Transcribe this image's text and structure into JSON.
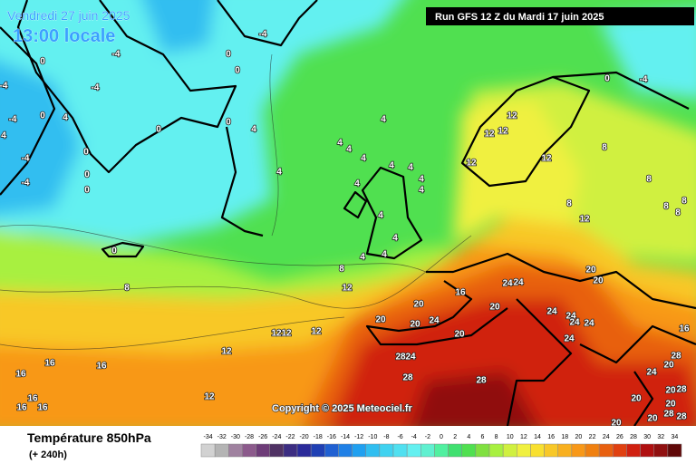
{
  "header": {
    "valid_date": "Vendredi 27 juin 2025",
    "valid_time": "13:00 locale",
    "run": "Run GFS 12 Z du Mardi 17 juin 2025"
  },
  "copyright": "Copyright © 2025 Meteociel.fr",
  "footer": {
    "title": "Température 850hPa",
    "lead_time": "(+ 240h)"
  },
  "contour_labels": [
    0,
    -4,
    -4,
    0,
    0,
    -4,
    -4,
    -4,
    0,
    4,
    4,
    0,
    0,
    4,
    4,
    4,
    4,
    4,
    4,
    4,
    4,
    4,
    4,
    4,
    -4,
    0,
    0,
    -4,
    0,
    12,
    12,
    12,
    12,
    12,
    8,
    8,
    8,
    8,
    8,
    8,
    12,
    0,
    4,
    4,
    4,
    4,
    8,
    8,
    12,
    20,
    16,
    24,
    24,
    20,
    24,
    20,
    20,
    24,
    24,
    24,
    24,
    24,
    20,
    20,
    20,
    12,
    12,
    12,
    12,
    28,
    24,
    28,
    28,
    12,
    16,
    16,
    16,
    16,
    16,
    16,
    16,
    28,
    20,
    24,
    28,
    20,
    20,
    20,
    28,
    28,
    20,
    20,
    0,
    -4
  ],
  "color_scale": {
    "values": [
      -34,
      -32,
      -30,
      -28,
      -26,
      -24,
      -22,
      -20,
      -18,
      -16,
      -14,
      -12,
      -10,
      -8,
      -6,
      -4,
      -2,
      0,
      2,
      4,
      6,
      8,
      10,
      12,
      14,
      16,
      18,
      20,
      22,
      24,
      26,
      28,
      30,
      32,
      34
    ],
    "colors": [
      "#d2d2d2",
      "#b4b4b4",
      "#a082a0",
      "#8c5a8c",
      "#6e3c78",
      "#503264",
      "#3c2d82",
      "#2a2a9a",
      "#2040b4",
      "#2060d2",
      "#2080e6",
      "#20a0f0",
      "#30bef0",
      "#40d2f0",
      "#50e0f0",
      "#64f0f0",
      "#60f0d0",
      "#50f0a0",
      "#40e070",
      "#50e050",
      "#80e040",
      "#a8f040",
      "#d0f040",
      "#f0f040",
      "#f8e030",
      "#f8c828",
      "#f8b020",
      "#f89818",
      "#f08010",
      "#e86010",
      "#e04010",
      "#d02010",
      "#b01010",
      "#901010",
      "#600808"
    ]
  }
}
